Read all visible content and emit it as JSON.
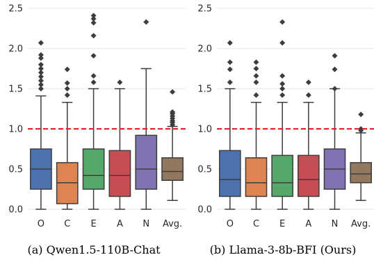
{
  "chart_data": [
    {
      "type": "box",
      "caption": "(a) Qwen1.5-110B-Chat",
      "categories": [
        "O",
        "C",
        "E",
        "A",
        "N",
        "Avg."
      ],
      "ylim": [
        0,
        2.5
      ],
      "yticks": [
        "0.0",
        "0.5",
        "1.0",
        "1.5",
        "2.0",
        "2.5"
      ],
      "reference_line": 1.0,
      "boxes": [
        {
          "category": "O",
          "whisker_low": 0.0,
          "q1": 0.25,
          "median": 0.5,
          "q3": 0.75,
          "whisker_high": 1.41,
          "outliers": [
            1.5,
            1.55,
            1.6,
            1.65,
            1.7,
            1.75,
            1.8,
            1.88,
            1.92,
            2.07
          ]
        },
        {
          "category": "C",
          "whisker_low": 0.0,
          "q1": 0.07,
          "median": 0.33,
          "q3": 0.58,
          "whisker_high": 1.33,
          "outliers": [
            1.42,
            1.5,
            1.57,
            1.74
          ]
        },
        {
          "category": "E",
          "whisker_low": 0.0,
          "q1": 0.25,
          "median": 0.42,
          "q3": 0.75,
          "whisker_high": 1.5,
          "outliers": [
            1.58,
            1.66,
            1.91,
            2.16,
            2.32,
            2.37,
            2.41
          ]
        },
        {
          "category": "A",
          "whisker_low": 0.0,
          "q1": 0.16,
          "median": 0.42,
          "q3": 0.73,
          "whisker_high": 1.5,
          "outliers": [
            1.58
          ]
        },
        {
          "category": "N",
          "whisker_low": 0.0,
          "q1": 0.25,
          "median": 0.5,
          "q3": 0.92,
          "whisker_high": 1.75,
          "outliers": [
            2.33
          ]
        },
        {
          "category": "Avg.",
          "whisker_low": 0.11,
          "q1": 0.36,
          "median": 0.47,
          "q3": 0.64,
          "whisker_high": 1.03,
          "outliers": [
            1.05,
            1.08,
            1.1,
            1.13,
            1.16,
            1.19,
            1.21,
            1.46
          ]
        }
      ]
    },
    {
      "type": "box",
      "caption": "(b) Llama-3-8b-BFI (Ours)",
      "categories": [
        "O",
        "C",
        "E",
        "A",
        "N",
        "Avg."
      ],
      "ylim": [
        0,
        2.5
      ],
      "yticks": [
        "0.0",
        "0.5",
        "1.0",
        "1.5",
        "2.0",
        "2.5"
      ],
      "reference_line": 1.0,
      "boxes": [
        {
          "category": "O",
          "whisker_low": 0.0,
          "q1": 0.16,
          "median": 0.37,
          "q3": 0.73,
          "whisker_high": 1.5,
          "outliers": [
            1.58,
            1.74,
            1.83,
            2.07
          ]
        },
        {
          "category": "C",
          "whisker_low": 0.0,
          "q1": 0.16,
          "median": 0.33,
          "q3": 0.64,
          "whisker_high": 1.33,
          "outliers": [
            1.42,
            1.58,
            1.66,
            1.75,
            1.83
          ]
        },
        {
          "category": "E",
          "whisker_low": 0.0,
          "q1": 0.16,
          "median": 0.33,
          "q3": 0.67,
          "whisker_high": 1.33,
          "outliers": [
            1.42,
            1.5,
            1.56,
            1.66,
            2.07,
            2.33
          ]
        },
        {
          "category": "A",
          "whisker_low": 0.0,
          "q1": 0.16,
          "median": 0.37,
          "q3": 0.67,
          "whisker_high": 1.33,
          "outliers": [
            1.42,
            1.58
          ]
        },
        {
          "category": "N",
          "whisker_low": 0.0,
          "q1": 0.25,
          "median": 0.5,
          "q3": 0.75,
          "whisker_high": 1.5,
          "outliers": [
            1.5,
            1.74,
            1.91
          ]
        },
        {
          "category": "Avg.",
          "whisker_low": 0.11,
          "q1": 0.33,
          "median": 0.44,
          "q3": 0.58,
          "whisker_high": 0.95,
          "outliers": [
            0.98,
            1.0,
            1.18
          ]
        }
      ]
    }
  ],
  "colors": {
    "O": "#4c72b0",
    "C": "#dd8452",
    "E": "#55a868",
    "A": "#c44e52",
    "N": "#8172b3",
    "Avg.": "#937860",
    "reference_line": "#e41a1c",
    "grid": "#e6e6e6",
    "box_edge": "#3d3d3d"
  }
}
